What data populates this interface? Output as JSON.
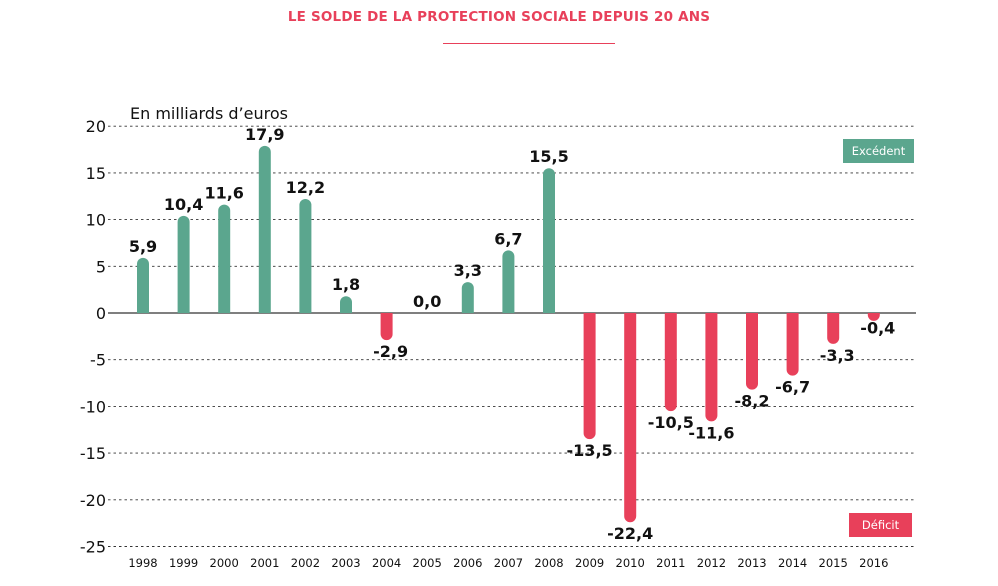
{
  "header": {
    "title": "LE SOLDE DE LA PROTECTION SOCIALE DEPUIS 20 ANS"
  },
  "legend": {
    "excedent": "Excédent",
    "deficit": "Déficit"
  },
  "colors": {
    "title": "#e8405a",
    "positive": "#5ba68e",
    "negative": "#e8405a",
    "grid": "#333333",
    "text": "#111111"
  },
  "chart_data": {
    "type": "bar",
    "title": "LE SOLDE DE LA PROTECTION SOCIALE DEPUIS 20 ANS",
    "ylabel": "En milliards d’euros",
    "xlabel": "",
    "ylim": [
      -25,
      20
    ],
    "yticks": [
      20,
      15,
      10,
      5,
      0,
      -5,
      -10,
      -15,
      -20,
      -25
    ],
    "ytick_labels": [
      "20",
      "15",
      "10",
      "5",
      "0",
      "-5",
      "-10",
      "-15",
      "-20",
      "-25"
    ],
    "grid": "horizontal dashed",
    "categories": [
      "1998",
      "1999",
      "2000",
      "2001",
      "2002",
      "2003",
      "2004",
      "2005",
      "2006",
      "2007",
      "2008",
      "2009",
      "2010",
      "2011",
      "2012",
      "2013",
      "2014",
      "2015",
      "2016"
    ],
    "values": [
      5.9,
      10.4,
      11.6,
      17.9,
      12.2,
      1.8,
      -2.9,
      0.0,
      3.3,
      6.7,
      15.5,
      -13.5,
      -22.4,
      -10.5,
      -11.6,
      -8.2,
      -6.7,
      -3.3,
      -0.4
    ],
    "value_labels": [
      "5,9",
      "10,4",
      "11,6",
      "17,9",
      "12,2",
      "1,8",
      "-2,9",
      "0,0",
      "3,3",
      "6,7",
      "15,5",
      "-13,5",
      "-22,4",
      "-10,5",
      "-11,6",
      "-8,2",
      "-6,7",
      "-3,3",
      "-0,4"
    ]
  }
}
